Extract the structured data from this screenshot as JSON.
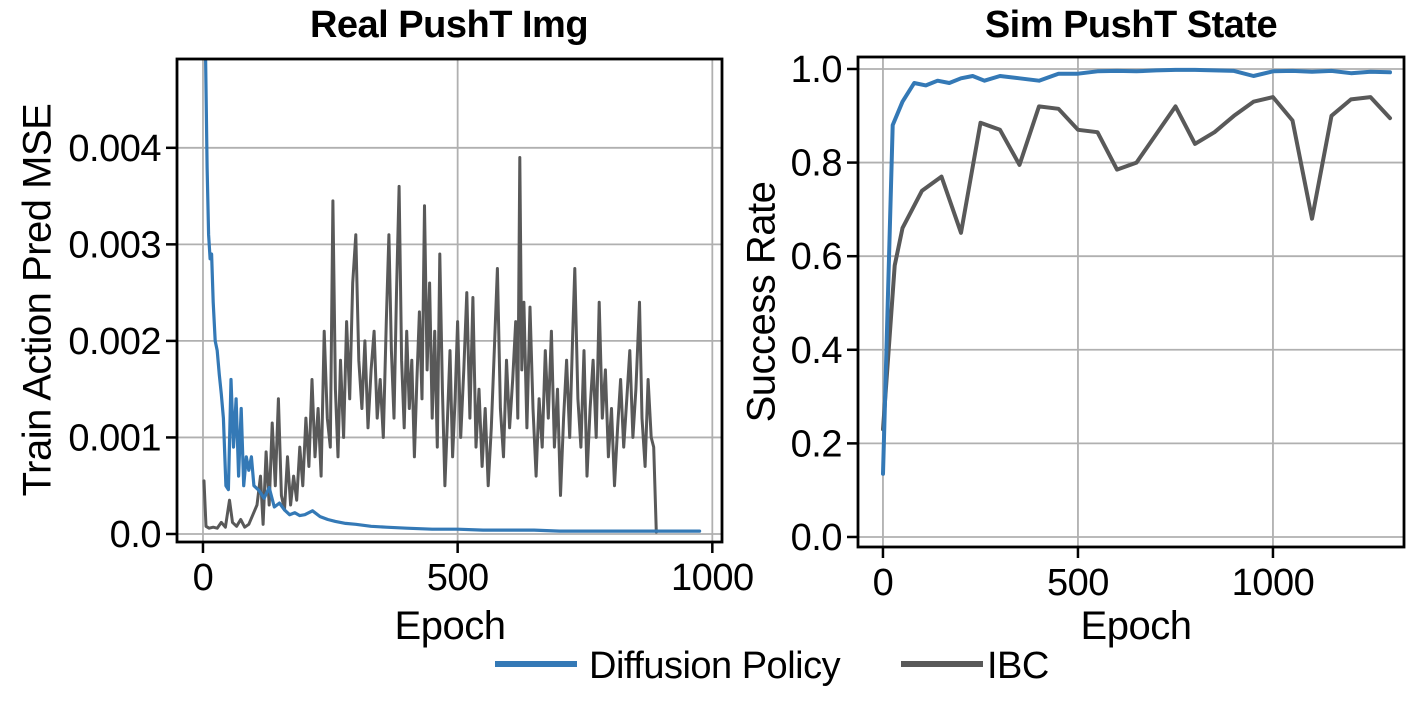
{
  "figure": {
    "background": "#ffffff",
    "text_color": "#000000",
    "legend": {
      "entries": [
        {
          "label": "Diffusion Policy",
          "color": "#3479b6"
        },
        {
          "label": "IBC",
          "color": "#595959"
        }
      ]
    }
  },
  "chart_data": [
    {
      "type": "line",
      "title": "Real PushT Img",
      "xlabel": "Epoch",
      "ylabel": "Train Action Pred MSE",
      "xlim": [
        -51,
        1019
      ],
      "ylim": [
        -8.3e-05,
        0.00492
      ],
      "xticks": [
        0,
        500,
        1000
      ],
      "xtick_labels": [
        "0",
        "500",
        "1000"
      ],
      "yticks": [
        0.0,
        0.001,
        0.002,
        0.003,
        0.004
      ],
      "ytick_labels": [
        "0.0",
        "0.001",
        "0.002",
        "0.003",
        "0.004"
      ],
      "grid": true,
      "grid_color": "#b0b0b0",
      "legend_position": "lower center (figure)",
      "series": [
        {
          "name": "IBC",
          "color": "#595959",
          "linewidth": 3,
          "x": [
            2,
            6,
            12,
            20,
            28,
            36,
            44,
            52,
            58,
            66,
            74,
            82,
            90,
            98,
            106,
            113,
            118,
            124,
            130,
            136,
            142,
            148,
            154,
            160,
            166,
            172,
            178,
            184,
            190,
            196,
            202,
            208,
            214,
            220,
            226,
            232,
            238,
            244,
            250,
            255,
            260,
            265,
            270,
            276,
            282,
            288,
            294,
            300,
            306,
            312,
            318,
            324,
            330,
            336,
            342,
            348,
            354,
            360,
            365,
            370,
            375,
            380,
            385,
            390,
            395,
            400,
            405,
            410,
            415,
            420,
            425,
            430,
            435,
            440,
            445,
            450,
            455,
            460,
            465,
            470,
            475,
            480,
            485,
            490,
            495,
            500,
            506,
            512,
            518,
            524,
            530,
            536,
            542,
            548,
            554,
            560,
            566,
            572,
            578,
            584,
            590,
            596,
            602,
            608,
            614,
            618,
            622,
            626,
            630,
            636,
            642,
            648,
            654,
            660,
            666,
            672,
            678,
            684,
            690,
            696,
            702,
            708,
            714,
            720,
            726,
            730,
            736,
            742,
            748,
            754,
            760,
            766,
            772,
            778,
            784,
            790,
            796,
            802,
            808,
            814,
            820,
            826,
            832,
            838,
            844,
            850,
            857,
            862,
            868,
            874,
            880,
            885,
            890
          ],
          "y": [
            0.00055,
            8e-05,
            6e-05,
            7e-05,
            6e-05,
            0.00012,
            7e-05,
            0.00035,
            0.00012,
            8e-05,
            0.00015,
            7e-05,
            0.0001,
            0.0002,
            0.0003,
            0.0006,
            0.0001,
            0.00085,
            0.0003,
            0.00115,
            0.0005,
            0.0014,
            0.0004,
            0.00025,
            0.0008,
            0.0003,
            0.0006,
            0.00035,
            0.0009,
            0.0005,
            0.0012,
            0.0007,
            0.0016,
            0.0008,
            0.0013,
            0.0006,
            0.0021,
            0.0012,
            0.0009,
            0.00345,
            0.0015,
            0.0008,
            0.0018,
            0.001,
            0.0022,
            0.0014,
            0.0026,
            0.0031,
            0.0018,
            0.0013,
            0.002,
            0.0011,
            0.0017,
            0.0021,
            0.0012,
            0.0016,
            0.001,
            0.0022,
            0.0031,
            0.0019,
            0.0012,
            0.0025,
            0.0036,
            0.0018,
            0.0011,
            0.0021,
            0.0013,
            0.0018,
            0.0008,
            0.0016,
            0.0023,
            0.0014,
            0.0034,
            0.0017,
            0.0026,
            0.0012,
            0.0021,
            0.0009,
            0.0029,
            0.0015,
            0.0005,
            0.0012,
            0.0019,
            0.0008,
            0.0014,
            0.0022,
            0.001,
            0.0017,
            0.0025,
            0.0012,
            0.00245,
            0.0009,
            0.0015,
            0.0007,
            0.0013,
            0.0005,
            0.0011,
            0.0019,
            0.00275,
            0.0013,
            0.0008,
            0.0018,
            0.0011,
            0.0016,
            0.0022,
            0.0012,
            0.0039,
            0.0017,
            0.0024,
            0.0011,
            0.00235,
            0.0013,
            0.0006,
            0.0014,
            0.0009,
            0.0019,
            0.0012,
            0.0021,
            0.0009,
            0.0015,
            0.0004,
            0.0012,
            0.0018,
            0.001,
            0.0021,
            0.00275,
            0.0014,
            0.0009,
            0.0019,
            0.0006,
            0.0013,
            0.0018,
            0.001,
            0.0024,
            0.0012,
            0.0017,
            0.0008,
            0.0013,
            0.0005,
            0.0011,
            0.0016,
            0.0009,
            0.0014,
            0.0019,
            0.001,
            0.0015,
            0.0024,
            0.0012,
            0.0007,
            0.0016,
            0.001,
            0.0009,
            2e-05
          ]
        },
        {
          "name": "Diffusion Policy",
          "color": "#3479b6",
          "linewidth": 3.2,
          "x": [
            2,
            5,
            8,
            11,
            14,
            17,
            20,
            24,
            28,
            32,
            36,
            40,
            45,
            50,
            55,
            60,
            65,
            70,
            75,
            80,
            85,
            90,
            95,
            100,
            110,
            120,
            130,
            140,
            150,
            160,
            170,
            180,
            190,
            200,
            215,
            230,
            245,
            260,
            280,
            300,
            330,
            360,
            400,
            450,
            500,
            550,
            600,
            650,
            700,
            750,
            800,
            850,
            900,
            950,
            975
          ],
          "y": [
            0.0095,
            0.005,
            0.0038,
            0.0031,
            0.00285,
            0.0029,
            0.0024,
            0.002,
            0.0019,
            0.00165,
            0.00145,
            0.0012,
            0.0005,
            0.00046,
            0.0016,
            0.0009,
            0.0014,
            0.0006,
            0.0013,
            0.0005,
            0.0008,
            0.00066,
            0.0008,
            0.0005,
            0.00045,
            0.00037,
            0.00048,
            0.00028,
            0.00032,
            0.00025,
            0.0002,
            0.00022,
            0.00019,
            0.0002,
            0.00024,
            0.00018,
            0.00015,
            0.00013,
            0.00011,
            0.0001,
            8e-05,
            7e-05,
            6e-05,
            5e-05,
            5e-05,
            4e-05,
            4e-05,
            4e-05,
            3e-05,
            3e-05,
            3e-05,
            3e-05,
            3e-05,
            3e-05,
            3e-05
          ]
        }
      ]
    },
    {
      "type": "line",
      "title": "Sim PushT State",
      "xlabel": "Epoch",
      "ylabel": "Success Rate",
      "xlim": [
        -64,
        1336
      ],
      "ylim": [
        -0.0214,
        1.0256
      ],
      "xticks": [
        0,
        500,
        1000
      ],
      "xtick_labels": [
        "0",
        "500",
        "1000"
      ],
      "yticks": [
        0.0,
        0.2,
        0.4,
        0.6,
        0.8,
        1.0
      ],
      "ytick_labels": [
        "0.0",
        "0.2",
        "0.4",
        "0.6",
        "0.8",
        "1.0"
      ],
      "grid": true,
      "grid_color": "#b0b0b0",
      "legend_position": "lower center (figure)",
      "series": [
        {
          "name": "IBC",
          "color": "#595959",
          "linewidth": 4,
          "x": [
            0,
            30,
            50,
            100,
            150,
            200,
            250,
            300,
            350,
            400,
            450,
            500,
            550,
            600,
            650,
            700,
            750,
            800,
            850,
            900,
            950,
            1000,
            1050,
            1100,
            1150,
            1200,
            1250,
            1300
          ],
          "y": [
            0.23,
            0.58,
            0.66,
            0.74,
            0.77,
            0.65,
            0.885,
            0.87,
            0.795,
            0.92,
            0.915,
            0.87,
            0.865,
            0.785,
            0.8,
            0.86,
            0.92,
            0.84,
            0.865,
            0.9,
            0.93,
            0.94,
            0.89,
            0.68,
            0.9,
            0.935,
            0.94,
            0.895
          ]
        },
        {
          "name": "Diffusion Policy",
          "color": "#3479b6",
          "linewidth": 4,
          "x": [
            0,
            25,
            50,
            80,
            110,
            140,
            170,
            200,
            230,
            260,
            300,
            350,
            400,
            450,
            500,
            550,
            600,
            650,
            700,
            750,
            800,
            850,
            900,
            950,
            1000,
            1050,
            1100,
            1150,
            1200,
            1250,
            1300
          ],
          "y": [
            0.135,
            0.88,
            0.93,
            0.97,
            0.965,
            0.975,
            0.97,
            0.98,
            0.985,
            0.975,
            0.985,
            0.98,
            0.975,
            0.99,
            0.99,
            0.995,
            0.996,
            0.995,
            0.997,
            0.998,
            0.998,
            0.997,
            0.996,
            0.985,
            0.995,
            0.996,
            0.994,
            0.996,
            0.991,
            0.994,
            0.993
          ]
        }
      ]
    }
  ]
}
